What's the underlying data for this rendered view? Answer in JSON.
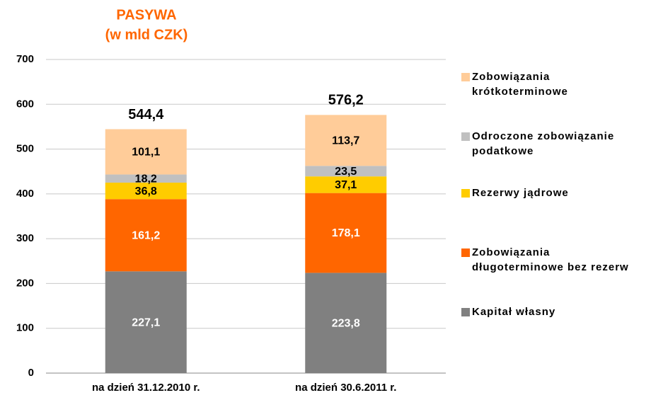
{
  "chart_data": {
    "type": "stacked_bar",
    "title": "PASYWA",
    "subtitle": "(w mld CZK)",
    "categories": [
      "na dzień 31.12.2010 r.",
      "na dzień 30.6.2011 r."
    ],
    "series": [
      {
        "name": "Kapitał własny",
        "color": "#808080",
        "label_color": "#ffffff",
        "values": [
          227.1,
          223.8
        ],
        "value_labels": [
          "227,1",
          "223,8"
        ]
      },
      {
        "name": "Zobowiązania długoterminowe bez rezerw",
        "color": "#ff6600",
        "label_color": "#ffffff",
        "values": [
          161.2,
          178.1
        ],
        "value_labels": [
          "161,2",
          "178,1"
        ]
      },
      {
        "name": "Rezerwy jądrowe",
        "color": "#ffcc00",
        "label_color": "#000000",
        "values": [
          36.8,
          37.1
        ],
        "value_labels": [
          "36,8",
          "37,1"
        ]
      },
      {
        "name": "Odroczone zobowiązanie podatkowe",
        "color": "#c0c0c0",
        "label_color": "#000000",
        "values": [
          18.2,
          23.5
        ],
        "value_labels": [
          "18,2",
          "23,5"
        ]
      },
      {
        "name": "Zobowiązania krótkoterminowe",
        "color": "#ffcc99",
        "label_color": "#000000",
        "values": [
          101.1,
          113.7
        ],
        "value_labels": [
          "101,1",
          "113,7"
        ]
      }
    ],
    "totals": [
      544.4,
      576.2
    ],
    "total_labels": [
      "544,4",
      "576,2"
    ],
    "ylim": [
      0,
      700
    ],
    "yticks": [
      0,
      100,
      200,
      300,
      400,
      500,
      600,
      700
    ],
    "grid": true,
    "legend": "right"
  }
}
